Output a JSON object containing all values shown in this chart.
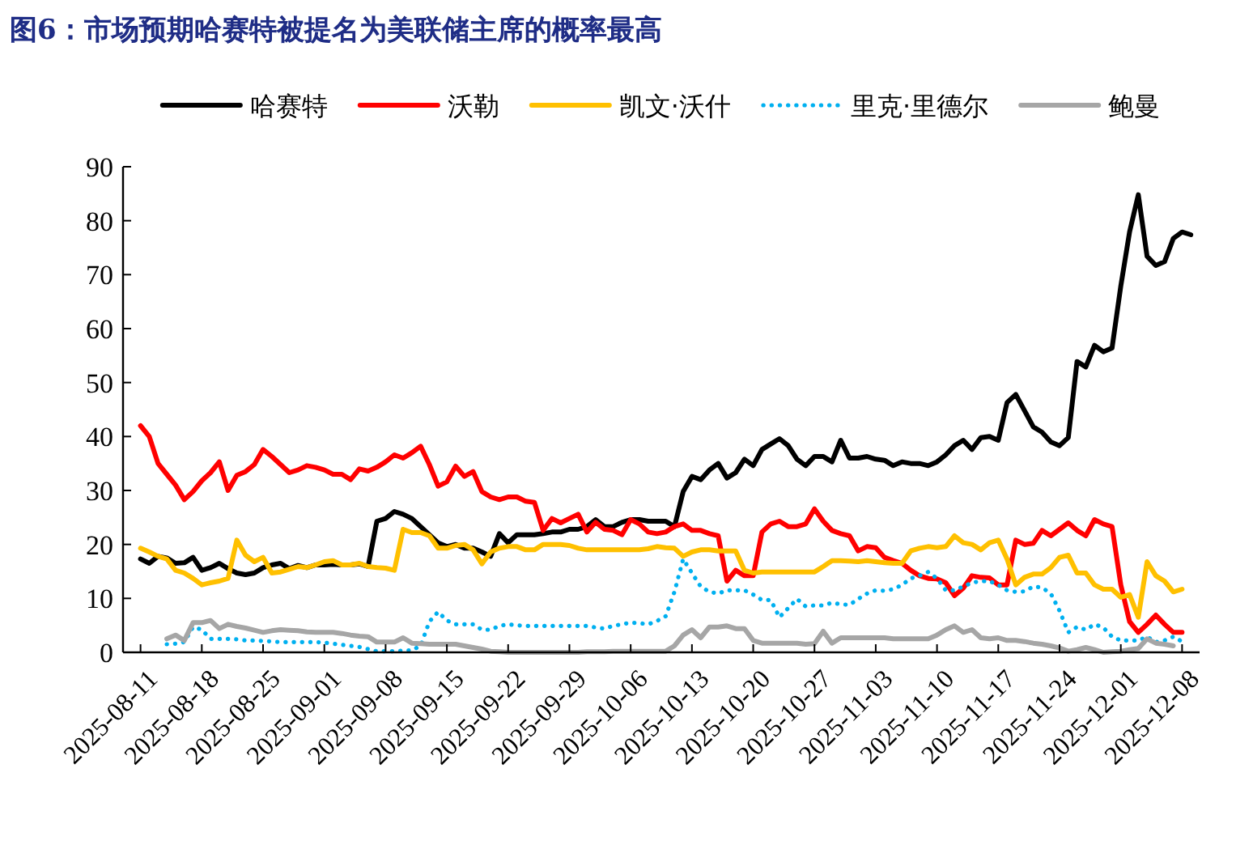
{
  "chart_data": {
    "type": "line",
    "title": "图6：市场预期哈赛特被提名为美联储主席的概率最高",
    "legend": "top",
    "grid": false,
    "marker": "none",
    "xlim": [
      "2025-08-09",
      "2025-12-10"
    ],
    "xticks": [
      "2025-08-11",
      "2025-08-18",
      "2025-08-25",
      "2025-09-01",
      "2025-09-08",
      "2025-09-15",
      "2025-09-22",
      "2025-09-29",
      "2025-10-06",
      "2025-10-13",
      "2025-10-20",
      "2025-10-27",
      "2025-11-03",
      "2025-11-10",
      "2025-11-17",
      "2025-11-24",
      "2025-12-01",
      "2025-12-08"
    ],
    "ylim": [
      0,
      90
    ],
    "yticks": [
      0,
      10,
      20,
      30,
      40,
      50,
      60,
      70,
      80,
      90
    ],
    "x": [
      "2025-08-11",
      "2025-08-12",
      "2025-08-13",
      "2025-08-14",
      "2025-08-15",
      "2025-08-16",
      "2025-08-17",
      "2025-08-18",
      "2025-08-19",
      "2025-08-20",
      "2025-08-21",
      "2025-08-22",
      "2025-08-23",
      "2025-08-24",
      "2025-08-25",
      "2025-08-26",
      "2025-08-27",
      "2025-08-28",
      "2025-08-29",
      "2025-08-30",
      "2025-08-31",
      "2025-09-01",
      "2025-09-02",
      "2025-09-03",
      "2025-09-04",
      "2025-09-05",
      "2025-09-06",
      "2025-09-07",
      "2025-09-08",
      "2025-09-09",
      "2025-09-10",
      "2025-09-11",
      "2025-09-12",
      "2025-09-13",
      "2025-09-14",
      "2025-09-15",
      "2025-09-16",
      "2025-09-17",
      "2025-09-18",
      "2025-09-19",
      "2025-09-20",
      "2025-09-21",
      "2025-09-22",
      "2025-09-23",
      "2025-09-24",
      "2025-09-25",
      "2025-09-26",
      "2025-09-27",
      "2025-09-28",
      "2025-09-29",
      "2025-09-30",
      "2025-10-01",
      "2025-10-02",
      "2025-10-03",
      "2025-10-04",
      "2025-10-05",
      "2025-10-06",
      "2025-10-07",
      "2025-10-08",
      "2025-10-09",
      "2025-10-10",
      "2025-10-11",
      "2025-10-12",
      "2025-10-13",
      "2025-10-14",
      "2025-10-15",
      "2025-10-16",
      "2025-10-17",
      "2025-10-18",
      "2025-10-19",
      "2025-10-20",
      "2025-10-21",
      "2025-10-22",
      "2025-10-23",
      "2025-10-24",
      "2025-10-25",
      "2025-10-26",
      "2025-10-27",
      "2025-10-28",
      "2025-10-29",
      "2025-10-30",
      "2025-10-31",
      "2025-11-01",
      "2025-11-02",
      "2025-11-03",
      "2025-11-04",
      "2025-11-05",
      "2025-11-06",
      "2025-11-07",
      "2025-11-08",
      "2025-11-09",
      "2025-11-10",
      "2025-11-11",
      "2025-11-12",
      "2025-11-13",
      "2025-11-14",
      "2025-11-15",
      "2025-11-16",
      "2025-11-17",
      "2025-11-18",
      "2025-11-19",
      "2025-11-20",
      "2025-11-21",
      "2025-11-22",
      "2025-11-23",
      "2025-11-24",
      "2025-11-25",
      "2025-11-26",
      "2025-11-27",
      "2025-11-28",
      "2025-11-29",
      "2025-11-30",
      "2025-12-01",
      "2025-12-02",
      "2025-12-03",
      "2025-12-04",
      "2025-12-05",
      "2025-12-06",
      "2025-12-07",
      "2025-12-08",
      "2025-12-09"
    ],
    "series": [
      {
        "name": "哈赛特",
        "color": "#000000",
        "line_style": "solid",
        "values": [
          17.3,
          16.5,
          17.8,
          17.5,
          16.5,
          16.6,
          17.6,
          15.2,
          15.7,
          16.5,
          15.5,
          14.7,
          14.4,
          14.7,
          15.7,
          16.2,
          16.5,
          15.5,
          16.1,
          15.7,
          16.2,
          16.2,
          16.3,
          16.2,
          16.2,
          16.4,
          15.9,
          24.3,
          24.8,
          26.1,
          25.6,
          24.8,
          23.3,
          21.8,
          20.3,
          19.6,
          20,
          19.3,
          19.3,
          18.6,
          17.8,
          22,
          20.3,
          21.8,
          21.8,
          21.8,
          22,
          22.3,
          22.3,
          22.8,
          22.8,
          23.3,
          24.6,
          23.3,
          23.3,
          24.1,
          24.6,
          24.6,
          24.3,
          24.3,
          24.3,
          23.3,
          29.8,
          32.6,
          32,
          33.8,
          35,
          32.3,
          33.3,
          35.8,
          34.6,
          37.6,
          38.6,
          39.6,
          38.3,
          35.8,
          34.6,
          36.3,
          36.3,
          35.3,
          39.3,
          36,
          36,
          36.3,
          35.8,
          35.6,
          34.6,
          35.3,
          35,
          35,
          34.6,
          35.3,
          36.6,
          38.3,
          39.3,
          37.6,
          39.8,
          40,
          39.3,
          46.3,
          47.8,
          44.8,
          41.8,
          40.8,
          39,
          38.3,
          39.8,
          53.9,
          52.9,
          56.9,
          55.7,
          56.4,
          67.9,
          77.9,
          84.8,
          73.4,
          71.7,
          72.4,
          76.7,
          77.9,
          77.4
        ]
      },
      {
        "name": "沃勒",
        "color": "#ff0000",
        "line_style": "solid",
        "values": [
          42,
          40,
          35,
          33,
          31,
          28.3,
          29.8,
          31.8,
          33.3,
          35.3,
          30,
          32.8,
          33.5,
          34.8,
          37.6,
          36.3,
          34.8,
          33.3,
          33.8,
          34.6,
          34.3,
          33.8,
          33,
          33,
          32,
          34,
          33.6,
          34.3,
          35.3,
          36.6,
          36,
          37,
          38.2,
          34.8,
          30.8,
          31.6,
          34.5,
          32.6,
          33.5,
          29.8,
          28.8,
          28.3,
          28.8,
          28.8,
          28,
          27.8,
          22.6,
          24.8,
          24,
          24.8,
          25.6,
          22.3,
          24.1,
          22.8,
          22.6,
          21.8,
          24.6,
          23.8,
          22.3,
          22,
          22.3,
          23.3,
          23.8,
          22.6,
          22.6,
          22,
          21.6,
          13.2,
          15.2,
          14.2,
          14.2,
          22.3,
          23.8,
          24.3,
          23.3,
          23.3,
          23.8,
          26.6,
          24.3,
          22.6,
          22,
          21.6,
          18.8,
          19.6,
          19.4,
          17.6,
          17,
          16.5,
          15.2,
          14.2,
          13.7,
          13.6,
          12.9,
          10.5,
          11.9,
          14.2,
          13.9,
          13.8,
          12.5,
          12.5,
          20.8,
          20,
          20.2,
          22.6,
          21.6,
          22.8,
          24,
          22.6,
          21.6,
          24.6,
          23.8,
          23.3,
          12.5,
          5.7,
          3.7,
          5.2,
          6.9,
          5.2,
          3.7,
          3.7,
          null
        ]
      },
      {
        "name": "凯文·沃什",
        "color": "#ffc000",
        "line_style": "solid",
        "values": [
          19.3,
          18.6,
          17.8,
          17.3,
          15.2,
          14.7,
          13.7,
          12.5,
          12.9,
          13.2,
          13.7,
          20.8,
          18,
          16.8,
          17.6,
          14.7,
          14.9,
          15.4,
          15.9,
          15.7,
          16.2,
          16.8,
          17,
          16.2,
          16.2,
          16.5,
          15.9,
          15.7,
          15.6,
          15.2,
          22.8,
          22.2,
          22.2,
          21.6,
          19.3,
          19.3,
          19.8,
          20,
          19,
          16.4,
          18.6,
          19.3,
          19.6,
          19.6,
          19,
          19,
          20,
          20,
          20,
          19.8,
          19.3,
          19,
          19,
          19,
          19,
          19,
          19,
          19,
          19.2,
          19.6,
          19.4,
          19.3,
          17.8,
          18.6,
          19,
          19,
          18.8,
          18.8,
          18.8,
          15.2,
          14.7,
          14.9,
          14.9,
          14.9,
          14.9,
          14.9,
          14.9,
          14.9,
          15.9,
          17,
          17,
          16.9,
          16.8,
          17,
          16.8,
          16.6,
          16.5,
          16.5,
          18.8,
          19.3,
          19.6,
          19.4,
          19.6,
          21.6,
          20.3,
          20,
          19,
          20.3,
          20.8,
          17.3,
          12.5,
          13.9,
          14.5,
          14.5,
          15.7,
          17.6,
          18,
          14.7,
          14.7,
          12.5,
          11.7,
          11.7,
          10.2,
          10.7,
          6.5,
          16.8,
          14.2,
          13.2,
          11.2,
          11.7,
          null
        ]
      },
      {
        "name": "里克·里德尔",
        "color": "#00b0f0",
        "line_style": "dotted",
        "values": [
          null,
          null,
          null,
          1.5,
          1.6,
          1.9,
          4.7,
          4.2,
          2.5,
          2.5,
          2.5,
          2.4,
          2.2,
          2.2,
          2.1,
          2,
          1.9,
          1.9,
          1.9,
          1.9,
          1.9,
          1.8,
          1.6,
          1.4,
          1.2,
          1,
          0.6,
          0.2,
          0.2,
          0.2,
          0.3,
          0.4,
          1.2,
          5.7,
          7.5,
          5.9,
          5.2,
          5.2,
          5.2,
          4.2,
          4.2,
          4.9,
          5.2,
          5,
          4.9,
          4.9,
          4.9,
          4.9,
          4.9,
          4.9,
          4.9,
          4.9,
          4.6,
          4.4,
          4.9,
          5.2,
          5.5,
          5.4,
          5.2,
          5.8,
          6.7,
          11.2,
          17.3,
          14.7,
          12.2,
          11.2,
          10.9,
          11.5,
          11.5,
          11.5,
          10.7,
          9.7,
          9.7,
          6.5,
          8.2,
          9.9,
          8.5,
          8.7,
          8.7,
          9.2,
          8.9,
          8.8,
          9.9,
          10.9,
          11.5,
          11.4,
          11.7,
          12.5,
          13.7,
          14.2,
          14.9,
          13.7,
          11.5,
          11.5,
          12.2,
          12.9,
          13.2,
          13.2,
          12.5,
          11.5,
          11.2,
          11.3,
          12.2,
          12,
          10.9,
          7.7,
          3.7,
          4.7,
          4.2,
          5.2,
          4.6,
          2.9,
          2.2,
          2.2,
          2.2,
          2.9,
          1.9,
          2.2,
          2.9,
          2,
          null
        ]
      },
      {
        "name": "鲍曼",
        "color": "#a6a6a6",
        "line_style": "solid",
        "values": [
          null,
          null,
          null,
          2.5,
          3.2,
          2.2,
          5.5,
          5.5,
          5.9,
          4.4,
          5.2,
          4.8,
          4.5,
          4.1,
          3.7,
          4,
          4.2,
          4.1,
          4,
          3.8,
          3.7,
          3.7,
          3.7,
          3.5,
          3.2,
          3,
          2.9,
          1.9,
          1.9,
          1.9,
          2.7,
          1.7,
          1.6,
          1.5,
          1.5,
          1.5,
          1.5,
          1.2,
          0.9,
          0.6,
          0.2,
          0.1,
          0,
          0,
          0,
          0,
          0,
          0,
          0,
          0,
          0,
          0.1,
          0.1,
          0.1,
          0.2,
          0.2,
          0.2,
          0.2,
          0.2,
          0.2,
          0.2,
          1.2,
          3.2,
          4.2,
          2.7,
          4.7,
          4.7,
          4.9,
          4.4,
          4.4,
          2.2,
          1.7,
          1.7,
          1.7,
          1.7,
          1.7,
          1.5,
          1.6,
          3.9,
          1.7,
          2.7,
          2.7,
          2.7,
          2.7,
          2.7,
          2.7,
          2.5,
          2.5,
          2.5,
          2.5,
          2.5,
          3.2,
          4.2,
          4.9,
          3.7,
          4.2,
          2.7,
          2.5,
          2.7,
          2.2,
          2.2,
          2,
          1.7,
          1.5,
          1.2,
          0.8,
          0.2,
          0.5,
          0.9,
          0.5,
          0,
          0.1,
          0.2,
          0.5,
          0.7,
          2.5,
          1.7,
          1.5,
          1.2,
          null,
          null
        ]
      }
    ]
  }
}
